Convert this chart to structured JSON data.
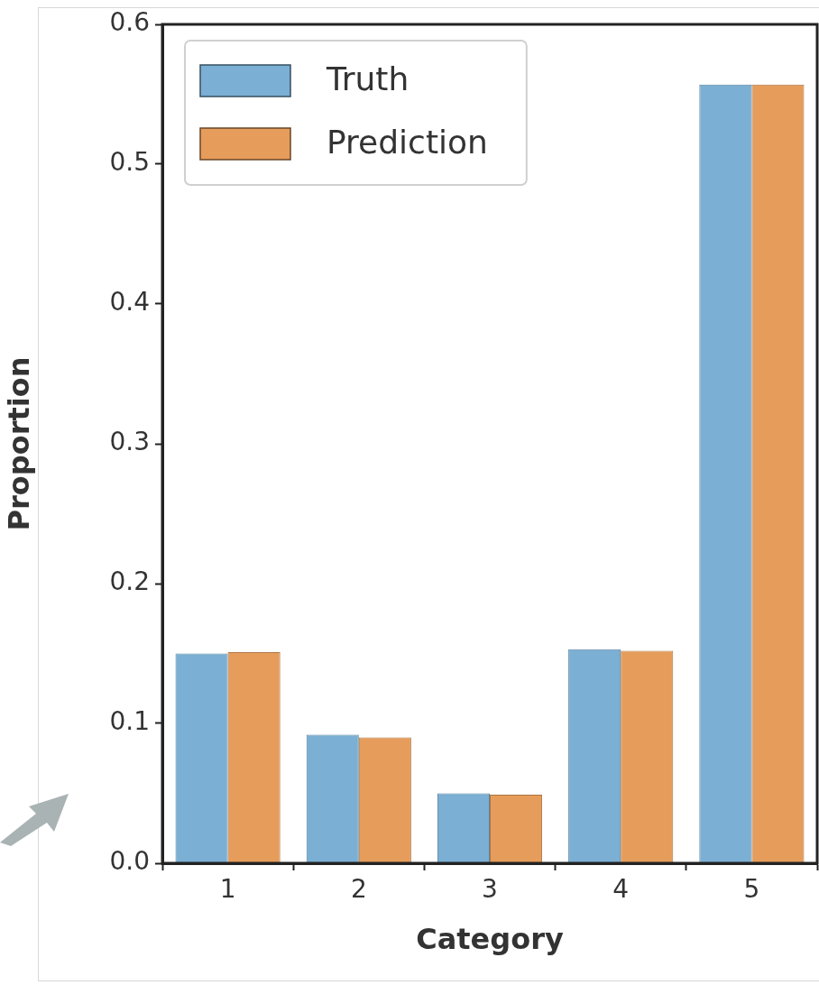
{
  "chart_data": {
    "type": "bar",
    "xlabel": "Category",
    "ylabel": "Proportion",
    "categories": [
      "1",
      "2",
      "3",
      "4",
      "5"
    ],
    "series": [
      {
        "name": "Truth",
        "color": "#7bafd4",
        "values": [
          0.15,
          0.092,
          0.05,
          0.153,
          0.557
        ]
      },
      {
        "name": "Prediction",
        "color": "#e69c5a",
        "values": [
          0.151,
          0.09,
          0.049,
          0.152,
          0.557
        ]
      }
    ],
    "ylim": [
      0,
      0.6
    ],
    "yticks": [
      {
        "value": 0,
        "label": "0.0"
      },
      0.1,
      0.2,
      0.3,
      0.4,
      0.5,
      0.6
    ],
    "grid": false,
    "legend": "top left"
  }
}
